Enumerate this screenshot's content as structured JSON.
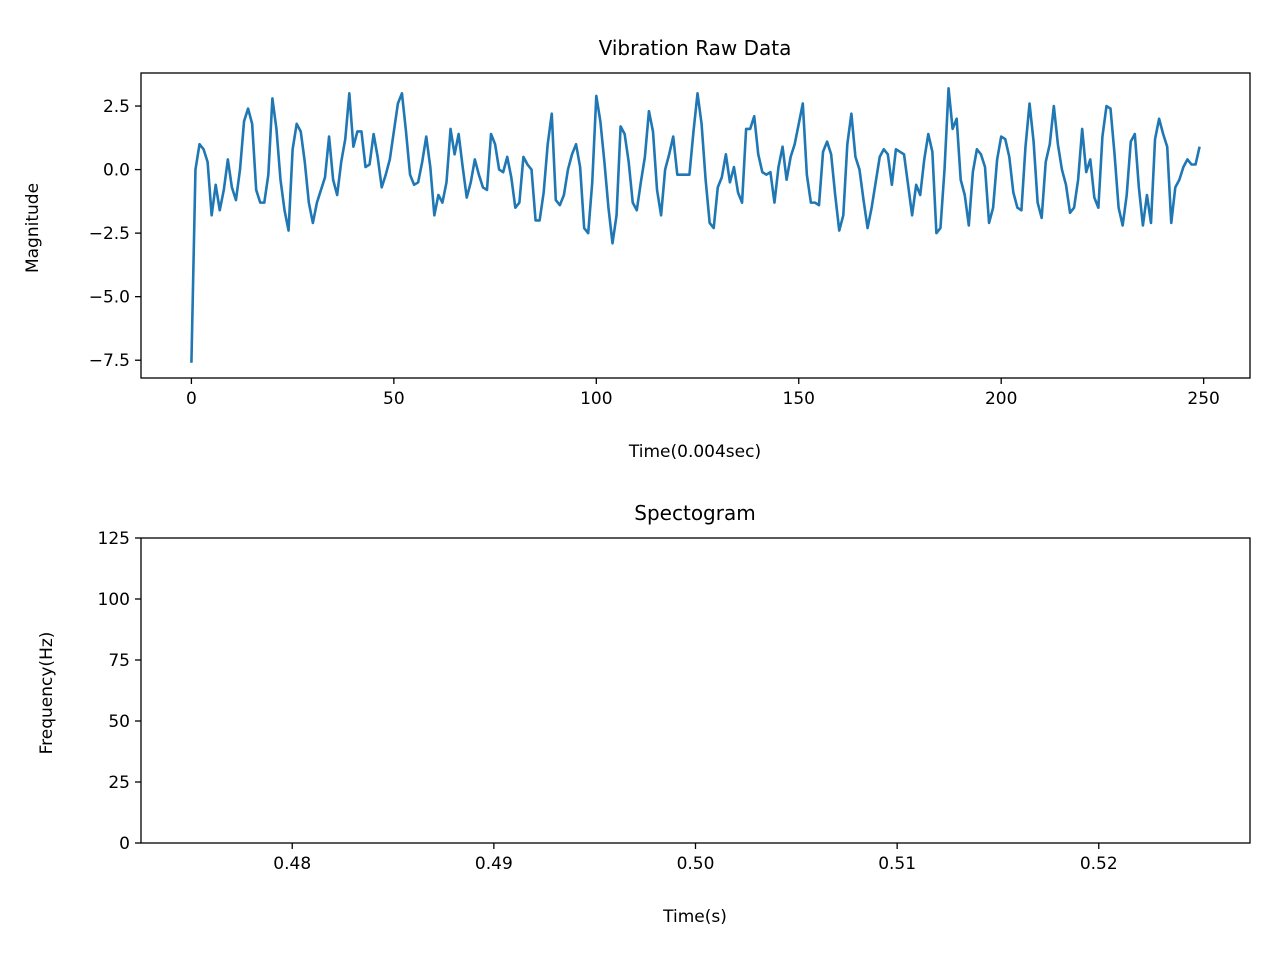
{
  "chart_data": [
    {
      "type": "line",
      "title": "Vibration Raw Data",
      "xlabel": "Time(0.004sec)",
      "ylabel": "Magnitude",
      "xlim": [
        -12.45,
        261.45
      ],
      "ylim": [
        -8.2,
        3.8
      ],
      "xticks": [
        0,
        50,
        100,
        150,
        200,
        250
      ],
      "xtick_labels": [
        "0",
        "50",
        "100",
        "150",
        "200",
        "250"
      ],
      "yticks": [
        2.5,
        0.0,
        -2.5,
        -5.0,
        -7.5
      ],
      "ytick_labels": [
        "2.5",
        "0.0",
        "−2.5",
        "−5.0",
        "−7.5"
      ],
      "grid": false,
      "color": "#1f77b4",
      "series": [
        {
          "values": [
            -7.6,
            0.0,
            1.0,
            0.8,
            0.3,
            -1.8,
            -0.6,
            -1.6,
            -0.8,
            0.4,
            -0.7,
            -1.2,
            0.0,
            1.9,
            2.4,
            1.8,
            -0.8,
            -1.3,
            -1.3,
            -0.2,
            2.8,
            1.6,
            -0.4,
            -1.6,
            -2.4,
            0.8,
            1.8,
            1.5,
            0.3,
            -1.3,
            -2.1,
            -1.3,
            -0.8,
            -0.3,
            1.3,
            -0.4,
            -1.0,
            0.3,
            1.2,
            3.0,
            0.9,
            1.5,
            1.5,
            0.1,
            0.2,
            1.4,
            0.5,
            -0.7,
            -0.2,
            0.4,
            1.5,
            2.6,
            3.0,
            1.5,
            -0.2,
            -0.6,
            -0.5,
            0.3,
            1.3,
            0.1,
            -1.8,
            -1.0,
            -1.3,
            -0.5,
            1.6,
            0.6,
            1.4,
            0.1,
            -1.1,
            -0.5,
            0.4,
            -0.2,
            -0.7,
            -0.8,
            1.4,
            1.0,
            0.0,
            -0.1,
            0.5,
            -0.3,
            -1.5,
            -1.3,
            0.5,
            0.2,
            0.0,
            -2.0,
            -2.0,
            -0.9,
            1.0,
            2.2,
            -1.2,
            -1.4,
            -1.0,
            0.0,
            0.6,
            1.0,
            0.1,
            -2.3,
            -2.5,
            -0.5,
            2.9,
            1.9,
            0.3,
            -1.5,
            -2.9,
            -1.8,
            1.7,
            1.4,
            0.3,
            -1.3,
            -1.6,
            -0.5,
            0.5,
            2.3,
            1.5,
            -0.8,
            -1.8,
            0.0,
            0.6,
            1.3,
            -0.2,
            -0.2,
            -0.2,
            -0.2,
            1.5,
            3.0,
            1.8,
            -0.4,
            -2.1,
            -2.3,
            -0.7,
            -0.3,
            0.6,
            -0.5,
            0.1,
            -0.9,
            -1.3,
            1.6,
            1.6,
            2.1,
            0.6,
            -0.1,
            -0.2,
            -0.1,
            -1.3,
            0.1,
            0.9,
            -0.4,
            0.5,
            1.0,
            1.8,
            2.6,
            -0.2,
            -1.3,
            -1.3,
            -1.4,
            0.7,
            1.1,
            0.6,
            -1.0,
            -2.4,
            -1.8,
            1.0,
            2.2,
            0.5,
            0.0,
            -1.2,
            -2.3,
            -1.5,
            -0.5,
            0.5,
            0.8,
            0.6,
            -0.6,
            0.8,
            0.7,
            0.6,
            -0.6,
            -1.8,
            -0.6,
            -1.0,
            0.4,
            1.4,
            0.7,
            -2.5,
            -2.3,
            0.0,
            3.2,
            1.6,
            2.0,
            -0.4,
            -1.0,
            -2.2,
            -0.1,
            0.8,
            0.6,
            0.1,
            -2.1,
            -1.5,
            0.4,
            1.3,
            1.2,
            0.5,
            -0.9,
            -1.5,
            -1.6,
            0.9,
            2.6,
            1.1,
            -1.3,
            -1.9,
            0.3,
            1.0,
            2.5,
            1.0,
            0.0,
            -0.6,
            -1.7,
            -1.5,
            -0.4,
            1.6,
            -0.1,
            0.4,
            -1.1,
            -1.5,
            1.3,
            2.5,
            2.4,
            0.6,
            -1.5,
            -2.2,
            -1.0,
            1.1,
            1.4,
            -0.7,
            -2.2,
            -1.0,
            -2.1,
            1.2,
            2.0,
            1.4,
            0.9,
            -2.1,
            -0.7,
            -0.4,
            0.1,
            0.4,
            0.2,
            0.2,
            0.9
          ]
        }
      ]
    },
    {
      "type": "heatmap",
      "title": "Spectogram",
      "xlabel": "Time(s)",
      "ylabel": "Frequency(Hz)",
      "xlim": [
        0.4725,
        0.5275
      ],
      "ylim": [
        0,
        125
      ],
      "xticks": [
        0.48,
        0.49,
        0.5,
        0.51,
        0.52
      ],
      "xtick_labels": [
        "0.48",
        "0.49",
        "0.50",
        "0.51",
        "0.52"
      ],
      "yticks": [
        0,
        25,
        50,
        75,
        100,
        125
      ],
      "ytick_labels": [
        "0",
        "25",
        "50",
        "75",
        "100",
        "125"
      ],
      "grid": false
    }
  ]
}
